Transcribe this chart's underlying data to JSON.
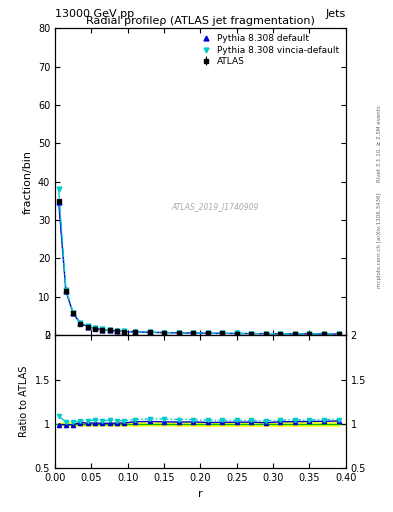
{
  "title": "13000 GeV pp",
  "title_right": "Jets",
  "plot_title": "Radial profileρ (ATLAS jet fragmentation)",
  "watermark": "ATLAS_2019_I1740909",
  "right_label_top": "Rivet 3.1.10, ≥ 2.5M events",
  "right_label_bottom": "mcplots.cern.ch [arXiv:1306.3436]",
  "ylabel_main": "fraction/bin",
  "ylabel_ratio": "Ratio to ATLAS",
  "xlabel": "r",
  "xlim": [
    0,
    0.4
  ],
  "ylim_main": [
    0,
    80
  ],
  "ylim_ratio": [
    0.5,
    2.0
  ],
  "yticks_main": [
    0,
    10,
    20,
    30,
    40,
    50,
    60,
    70,
    80
  ],
  "yticks_ratio": [
    0.5,
    1.0,
    1.5,
    2.0
  ],
  "r_values": [
    0.005,
    0.015,
    0.025,
    0.035,
    0.045,
    0.055,
    0.065,
    0.075,
    0.085,
    0.095,
    0.11,
    0.13,
    0.15,
    0.17,
    0.19,
    0.21,
    0.23,
    0.25,
    0.27,
    0.29,
    0.31,
    0.33,
    0.35,
    0.37,
    0.39
  ],
  "atlas_values": [
    35.0,
    11.5,
    5.7,
    3.0,
    2.2,
    1.7,
    1.4,
    1.2,
    1.05,
    0.9,
    0.8,
    0.7,
    0.62,
    0.56,
    0.51,
    0.47,
    0.43,
    0.4,
    0.37,
    0.35,
    0.32,
    0.3,
    0.28,
    0.26,
    0.24
  ],
  "atlas_errors": [
    0.5,
    0.2,
    0.1,
    0.05,
    0.04,
    0.03,
    0.02,
    0.02,
    0.02,
    0.015,
    0.015,
    0.012,
    0.01,
    0.01,
    0.01,
    0.01,
    0.008,
    0.008,
    0.008,
    0.007,
    0.007,
    0.006,
    0.006,
    0.005,
    0.005
  ],
  "pythia_default_values": [
    34.8,
    11.4,
    5.65,
    3.05,
    2.22,
    1.72,
    1.41,
    1.21,
    1.06,
    0.91,
    0.82,
    0.72,
    0.635,
    0.572,
    0.522,
    0.478,
    0.438,
    0.408,
    0.378,
    0.355,
    0.328,
    0.308,
    0.288,
    0.268,
    0.248
  ],
  "pythia_vincia_values": [
    38.0,
    11.8,
    5.8,
    3.1,
    2.28,
    1.78,
    1.45,
    1.25,
    1.09,
    0.93,
    0.84,
    0.74,
    0.655,
    0.588,
    0.535,
    0.49,
    0.448,
    0.416,
    0.385,
    0.362,
    0.334,
    0.314,
    0.293,
    0.273,
    0.252
  ],
  "atlas_color": "#000000",
  "atlas_fill_color": "#ffff00",
  "pythia_default_color": "#0000cc",
  "pythia_vincia_color": "#00cccc",
  "green_line_color": "#00bb00",
  "legend_labels": [
    "ATLAS",
    "Pythia 8.308 default",
    "Pythia 8.308 vincia-default"
  ]
}
